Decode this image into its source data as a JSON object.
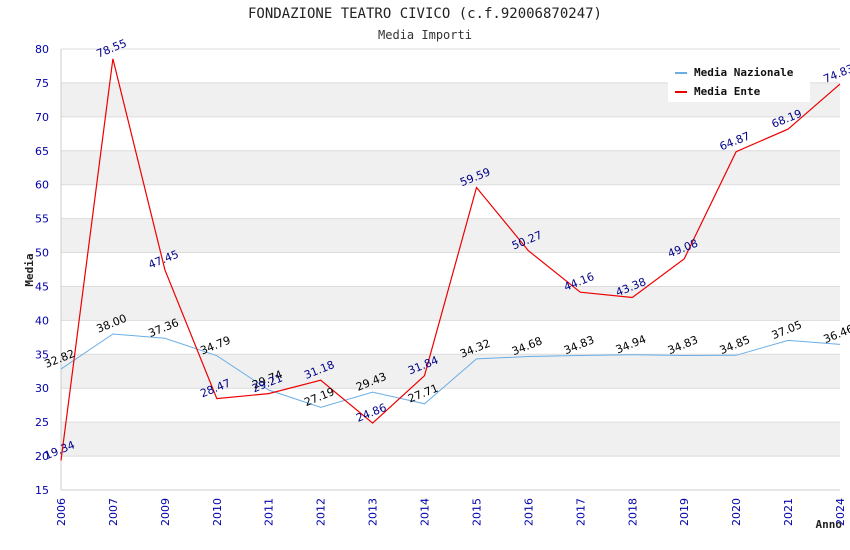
{
  "chart_data": {
    "type": "line",
    "title": "FONDAZIONE TEATRO CIVICO (c.f.92006870247)",
    "subtitle": "Media Importi",
    "xlabel": "Anno",
    "ylabel": "Media",
    "ylim": [
      15,
      80
    ],
    "yticks": [
      "15",
      "20",
      "25",
      "30",
      "35",
      "40",
      "45",
      "50",
      "55",
      "60",
      "65",
      "70",
      "75",
      "80"
    ],
    "categories": [
      "2006",
      "2007",
      "2009",
      "2010",
      "2011",
      "2012",
      "2013",
      "2014",
      "2015",
      "2016",
      "2017",
      "2018",
      "2019",
      "2020",
      "2021",
      "2024"
    ],
    "grid": true,
    "legend_position": "top-right",
    "series": [
      {
        "name": "Media Nazionale",
        "color": "#6aaee6",
        "label_color": "#000000",
        "values": [
          32.82,
          38.0,
          37.36,
          34.79,
          29.74,
          27.19,
          29.43,
          27.71,
          34.32,
          34.68,
          34.83,
          34.94,
          34.83,
          34.85,
          37.05,
          36.46
        ],
        "labels": [
          "32.82",
          "38.00",
          "37.36",
          "34.79",
          "29.74",
          "27.19",
          "29.43",
          "27.71",
          "34.32",
          "34.68",
          "34.83",
          "34.94",
          "34.83",
          "34.85",
          "37.05",
          "36.46"
        ]
      },
      {
        "name": "Media Ente",
        "color": "#ee0000",
        "label_color": "#000088",
        "values": [
          19.34,
          78.55,
          47.45,
          28.47,
          29.21,
          31.18,
          24.86,
          31.84,
          59.59,
          50.27,
          44.16,
          43.38,
          49.08,
          64.87,
          68.19,
          74.83
        ],
        "labels": [
          "19.34",
          "78.55",
          "47.45",
          "28.47",
          "29.21",
          "31.18",
          "24.86",
          "31.84",
          "59.59",
          "50.27",
          "44.16",
          "43.38",
          "49.08",
          "64.87",
          "68.19",
          "74.83"
        ]
      }
    ]
  }
}
